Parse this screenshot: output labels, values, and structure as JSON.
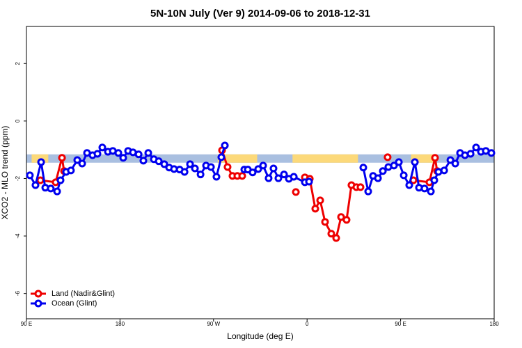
{
  "chart_data": {
    "type": "line",
    "title": "5N-10N July (Ver 9)   2014-09-06 to 2018-12-31",
    "x_label": "Longitude (deg E)",
    "y_label": "XCO2 - MLO trend (ppm)",
    "xlim": [
      90,
      540
    ],
    "ylim": [
      -6.88,
      3.29
    ],
    "xticks": [
      {
        "value": 90,
        "label": "90 E"
      },
      {
        "value": 180,
        "label": "180"
      },
      {
        "value": 270,
        "label": "90 W"
      },
      {
        "value": 360,
        "label": "0"
      },
      {
        "value": 450,
        "label": "90 E"
      },
      {
        "value": 540,
        "label": "180"
      }
    ],
    "yticks": [
      2,
      0,
      -2,
      -4,
      -6
    ],
    "legend": "bottom-left",
    "band": {
      "ylim": [
        -1.45,
        -1.16
      ],
      "color": "#a9bfe0",
      "land_color": "#fcd97a",
      "land_spans": [
        [
          95,
          111
        ],
        [
          274,
          312
        ],
        [
          346,
          409
        ],
        [
          460,
          483
        ]
      ]
    },
    "series": [
      {
        "name": "Land (Nadir&Glint)",
        "color": "#ee0000",
        "x": [
          103.4,
          118.1,
          124.2,
          126.2,
          200,
          278.2,
          283.5,
          288.2,
          292.9,
          297.6,
          310,
          349.2,
          352,
          357.9,
          362.6,
          367.9,
          372.6,
          377.3,
          383.3,
          388.0,
          392.7,
          398.0,
          402.7,
          407.4,
          411.4,
          420,
          437.5,
          445,
          462.3,
          477.7,
          483.1,
          485.1
        ],
        "values": [
          -2.06,
          -2.13,
          -1.28,
          -1.74,
          null,
          -1.02,
          -1.6,
          -1.91,
          -1.91,
          -1.91,
          null,
          -2.47,
          null,
          -1.96,
          -2.01,
          -3.05,
          -2.76,
          -3.51,
          -3.92,
          -4.07,
          -3.34,
          -3.44,
          -2.23,
          -2.3,
          -2.3,
          null,
          -1.26,
          null,
          -2.06,
          -2.13,
          -1.28,
          -1.74
        ]
      },
      {
        "name": "Ocean (Glint)",
        "color": "#0000ee",
        "x": [
          93.3,
          98.7,
          104.1,
          108.1,
          113.4,
          119.5,
          122.8,
          128.2,
          132.8,
          138.9,
          143.6,
          148.3,
          153.6,
          158.3,
          163.0,
          168.4,
          173.1,
          178.4,
          183.1,
          187.8,
          192.5,
          197.9,
          202.5,
          207.2,
          212.6,
          217.3,
          222.6,
          227.3,
          232.0,
          237.4,
          242.1,
          247.4,
          252.1,
          257.5,
          262.8,
          267.5,
          272.8,
          277.5,
          280.9,
          290,
          299.6,
          303.0,
          307.6,
          313.0,
          317.7,
          323.0,
          327.7,
          332.4,
          337.8,
          342.5,
          347.2,
          357.9,
          361.9,
          388,
          414.1,
          418.8,
          423.5,
          428.2,
          432.9,
          438.2,
          443.6,
          448.3,
          453.0,
          458.3,
          463.7,
          467.7,
          473.0,
          479.1,
          482.4,
          486.4,
          491.9,
          497.9,
          502.6,
          507.2,
          511.9,
          517.3,
          522.6,
          527.3,
          532.0,
          537.3
        ],
        "values": [
          -1.89,
          -2.23,
          -1.43,
          -2.32,
          -2.35,
          -2.45,
          -2.06,
          -1.77,
          -1.72,
          -1.36,
          -1.48,
          -1.11,
          -1.19,
          -1.14,
          -0.92,
          -1.07,
          -1.04,
          -1.11,
          -1.28,
          -1.04,
          -1.09,
          -1.16,
          -1.38,
          -1.11,
          -1.33,
          -1.4,
          -1.5,
          -1.62,
          -1.67,
          -1.69,
          -1.77,
          -1.5,
          -1.65,
          -1.86,
          -1.55,
          -1.6,
          -1.94,
          -1.26,
          -0.85,
          null,
          -1.69,
          -1.69,
          -1.79,
          -1.67,
          -1.55,
          -1.99,
          -1.65,
          -1.99,
          -1.86,
          -2.01,
          -1.94,
          -2.13,
          -2.11,
          null,
          -1.62,
          -2.45,
          -1.91,
          -1.99,
          -1.74,
          -1.6,
          -1.55,
          -1.43,
          -1.89,
          -2.23,
          -1.43,
          -2.32,
          -2.35,
          -2.45,
          -2.06,
          -1.77,
          -1.72,
          -1.36,
          -1.48,
          -1.11,
          -1.19,
          -1.14,
          -0.92,
          -1.07,
          -1.04,
          -1.11
        ]
      }
    ]
  }
}
